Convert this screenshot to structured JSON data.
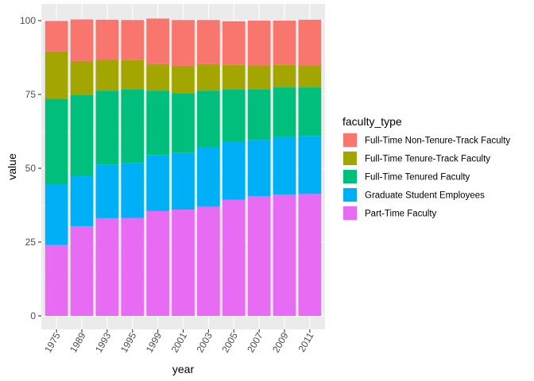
{
  "chart_data": {
    "type": "bar",
    "stacked": true,
    "xlabel": "year",
    "ylabel": "value",
    "ylim": [
      0,
      100
    ],
    "yticks": [
      0,
      25,
      50,
      75,
      100
    ],
    "grid": true,
    "legend_position": "right",
    "legend_title": "faculty_type",
    "categories": [
      "1975",
      "1989",
      "1993",
      "1995",
      "1999",
      "2001",
      "2003",
      "2005",
      "2007",
      "2009",
      "2011"
    ],
    "series": [
      {
        "name": "Full-Time Non-Tenure-Track Faculty",
        "color": "#F8766D",
        "values": [
          10.3,
          14.1,
          13.6,
          13.6,
          15.4,
          15.5,
          14.9,
          14.8,
          15.2,
          15.0,
          15.5
        ]
      },
      {
        "name": "Full-Time Tenure-Track Faculty",
        "color": "#A3A500",
        "values": [
          16.1,
          11.4,
          10.4,
          9.8,
          9.0,
          9.2,
          9.0,
          8.2,
          8.0,
          7.6,
          7.4
        ]
      },
      {
        "name": "Full-Time Tenured Faculty",
        "color": "#00BF7D",
        "values": [
          29.0,
          27.6,
          25.0,
          25.0,
          21.8,
          20.3,
          19.3,
          17.8,
          17.2,
          16.8,
          16.6
        ]
      },
      {
        "name": "Graduate Student Employees",
        "color": "#00B0F6",
        "values": [
          20.5,
          16.9,
          18.2,
          18.6,
          19.0,
          19.2,
          20.0,
          19.7,
          19.1,
          19.5,
          19.5
        ]
      },
      {
        "name": "Part-Time Faculty",
        "color": "#E76BF3",
        "values": [
          24.0,
          30.4,
          33.1,
          33.2,
          35.5,
          36.0,
          37.0,
          39.3,
          40.5,
          41.1,
          41.3
        ]
      }
    ]
  }
}
